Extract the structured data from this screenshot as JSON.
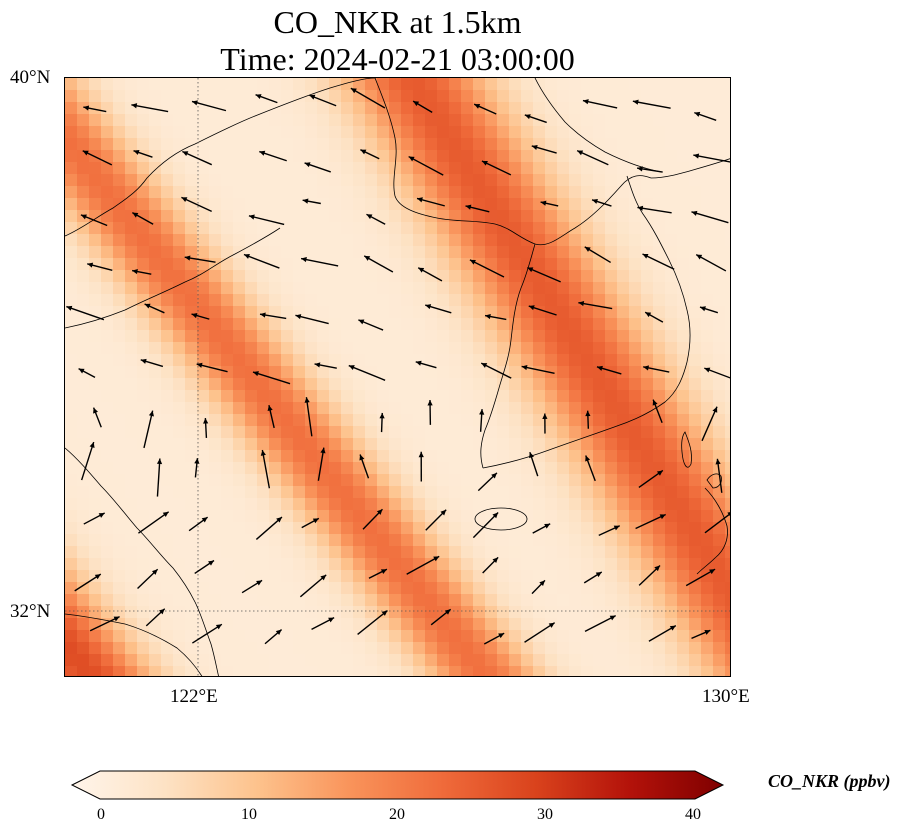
{
  "title": {
    "line1": "CO_NKR at 1.5km",
    "line2": "Time: 2024-02-21 03:00:00"
  },
  "map": {
    "lat_range": [
      31,
      40
    ],
    "lon_range": [
      120,
      130
    ],
    "gridlines": {
      "lat": 32,
      "lon": 122
    },
    "lat_labels": [
      "40°N",
      "32°N"
    ],
    "lon_labels": [
      "122°E",
      "130°E"
    ],
    "coastlines": "on",
    "wind_vectors": "on",
    "field_bands": [
      {
        "name_hidden": "",
        "lon_at_lat40": 125.2,
        "slope": 0.62,
        "halfwidth_deg": 1.1,
        "peak_ppbv": 22
      },
      {
        "name_hidden": "",
        "lon_at_lat40": 119.3,
        "slope": 0.78,
        "halfwidth_deg": 0.85,
        "peak_ppbv": 19
      },
      {
        "name_hidden": "",
        "lon_at_lat40": 113.2,
        "slope": 0.8,
        "halfwidth_deg": 0.95,
        "peak_ppbv": 24
      },
      {
        "name_hidden": "",
        "lon_at_lat40": 108.9,
        "slope": 0.88,
        "halfwidth_deg": 0.75,
        "peak_ppbv": 20
      }
    ]
  },
  "colorbar": {
    "label": "CO_NKR (ppbv)",
    "ticks": [
      "0",
      "10",
      "20",
      "30",
      "40"
    ],
    "range": [
      0,
      40
    ],
    "colormap": "Oranges-to-darkred",
    "colors": [
      "#fff5eb",
      "#fde2c4",
      "#fdc28c",
      "#f9935a",
      "#ef6a3a",
      "#d9421c",
      "#b3120a",
      "#7f0000"
    ]
  }
}
